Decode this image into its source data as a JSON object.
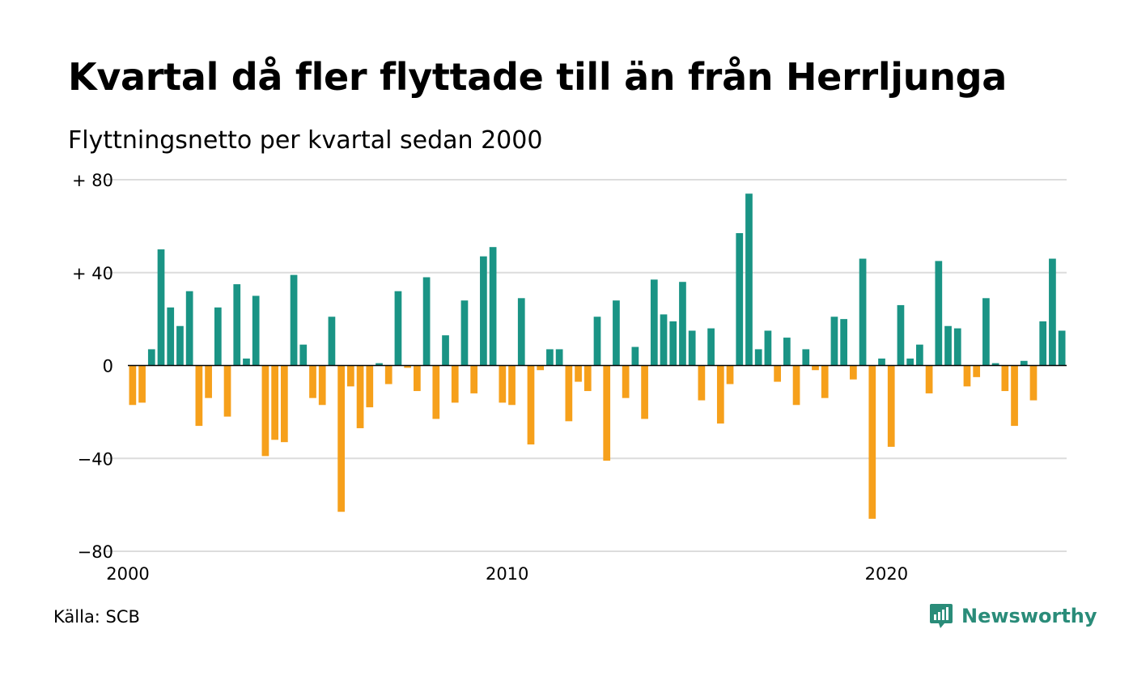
{
  "title": "Kvartal då fler flyttade till än från Herrljunga",
  "subtitle": "Flyttningsnetto per kvartal sedan 2000",
  "source": "Källa: SCB",
  "brand": {
    "name": "Newsworthy",
    "icon": "newsworthy-logo-icon",
    "color": "#2a8c79"
  },
  "colors": {
    "positive": "#1a9485",
    "negative": "#f6a01b",
    "grid": "#dcdcdc",
    "zero_line": "#000000"
  },
  "chart_data": {
    "type": "bar",
    "x_start": "2000 Q1",
    "ylim": [
      -80,
      80
    ],
    "y_ticks": [
      {
        "value": 80,
        "label": "+ 80"
      },
      {
        "value": 40,
        "label": "+ 40"
      },
      {
        "value": 0,
        "label": "0"
      },
      {
        "value": -40,
        "label": "−40"
      },
      {
        "value": -80,
        "label": "−80"
      }
    ],
    "x_ticks": [
      {
        "value": 2000,
        "label": "2000"
      },
      {
        "value": 2010,
        "label": "2010"
      },
      {
        "value": 2020,
        "label": "2020"
      }
    ],
    "grid": true,
    "values": [
      -17,
      -16,
      7,
      50,
      25,
      17,
      32,
      -26,
      -14,
      25,
      -22,
      35,
      3,
      30,
      -39,
      -32,
      -33,
      39,
      9,
      -14,
      -17,
      21,
      -63,
      -9,
      -27,
      -18,
      1,
      -8,
      32,
      -1,
      -11,
      38,
      -23,
      13,
      -16,
      28,
      -12,
      47,
      51,
      -16,
      -17,
      29,
      -34,
      -2,
      7,
      7,
      -24,
      -7,
      -11,
      21,
      -41,
      28,
      -14,
      8,
      -23,
      37,
      22,
      19,
      36,
      15,
      -15,
      16,
      -25,
      -8,
      57,
      74,
      7,
      15,
      -7,
      12,
      -17,
      7,
      -2,
      -14,
      21,
      20,
      -6,
      46,
      -66,
      3,
      -35,
      26,
      3,
      9,
      -12,
      45,
      17,
      16,
      -9,
      -5,
      29,
      1,
      -11,
      -26,
      2,
      -15,
      19,
      46,
      15
    ]
  }
}
